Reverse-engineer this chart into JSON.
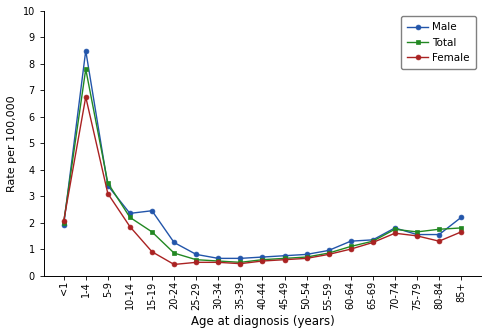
{
  "age_labels": [
    "<1",
    "1-4",
    "5-9",
    "10-14",
    "15-19",
    "20-24",
    "25-29",
    "30-34",
    "35-39",
    "40-44",
    "45-49",
    "50-54",
    "55-59",
    "60-64",
    "65-69",
    "70-74",
    "75-79",
    "80-84",
    "85+"
  ],
  "male": [
    1.9,
    8.5,
    3.4,
    2.35,
    2.45,
    1.25,
    0.8,
    0.65,
    0.65,
    0.7,
    0.75,
    0.8,
    0.95,
    1.3,
    1.35,
    1.8,
    1.55,
    1.55,
    2.2
  ],
  "total": [
    2.0,
    7.8,
    3.5,
    2.2,
    1.65,
    0.85,
    0.6,
    0.55,
    0.5,
    0.6,
    0.65,
    0.7,
    0.85,
    1.1,
    1.3,
    1.75,
    1.65,
    1.75,
    1.8
  ],
  "female": [
    2.05,
    6.75,
    3.1,
    1.85,
    0.9,
    0.42,
    0.5,
    0.5,
    0.45,
    0.55,
    0.6,
    0.65,
    0.8,
    1.0,
    1.25,
    1.6,
    1.5,
    1.3,
    1.65
  ],
  "male_color": "#2255aa",
  "total_color": "#228822",
  "female_color": "#aa2222",
  "xlabel": "Age at diagnosis (years)",
  "ylabel": "Rate per 100,000",
  "ylim": [
    0,
    10
  ],
  "yticks": [
    0,
    1,
    2,
    3,
    4,
    5,
    6,
    7,
    8,
    9,
    10
  ],
  "legend_labels": [
    "Male",
    "Total",
    "Female"
  ],
  "background_color": "#ffffff",
  "figsize": [
    4.88,
    3.35
  ],
  "dpi": 100
}
